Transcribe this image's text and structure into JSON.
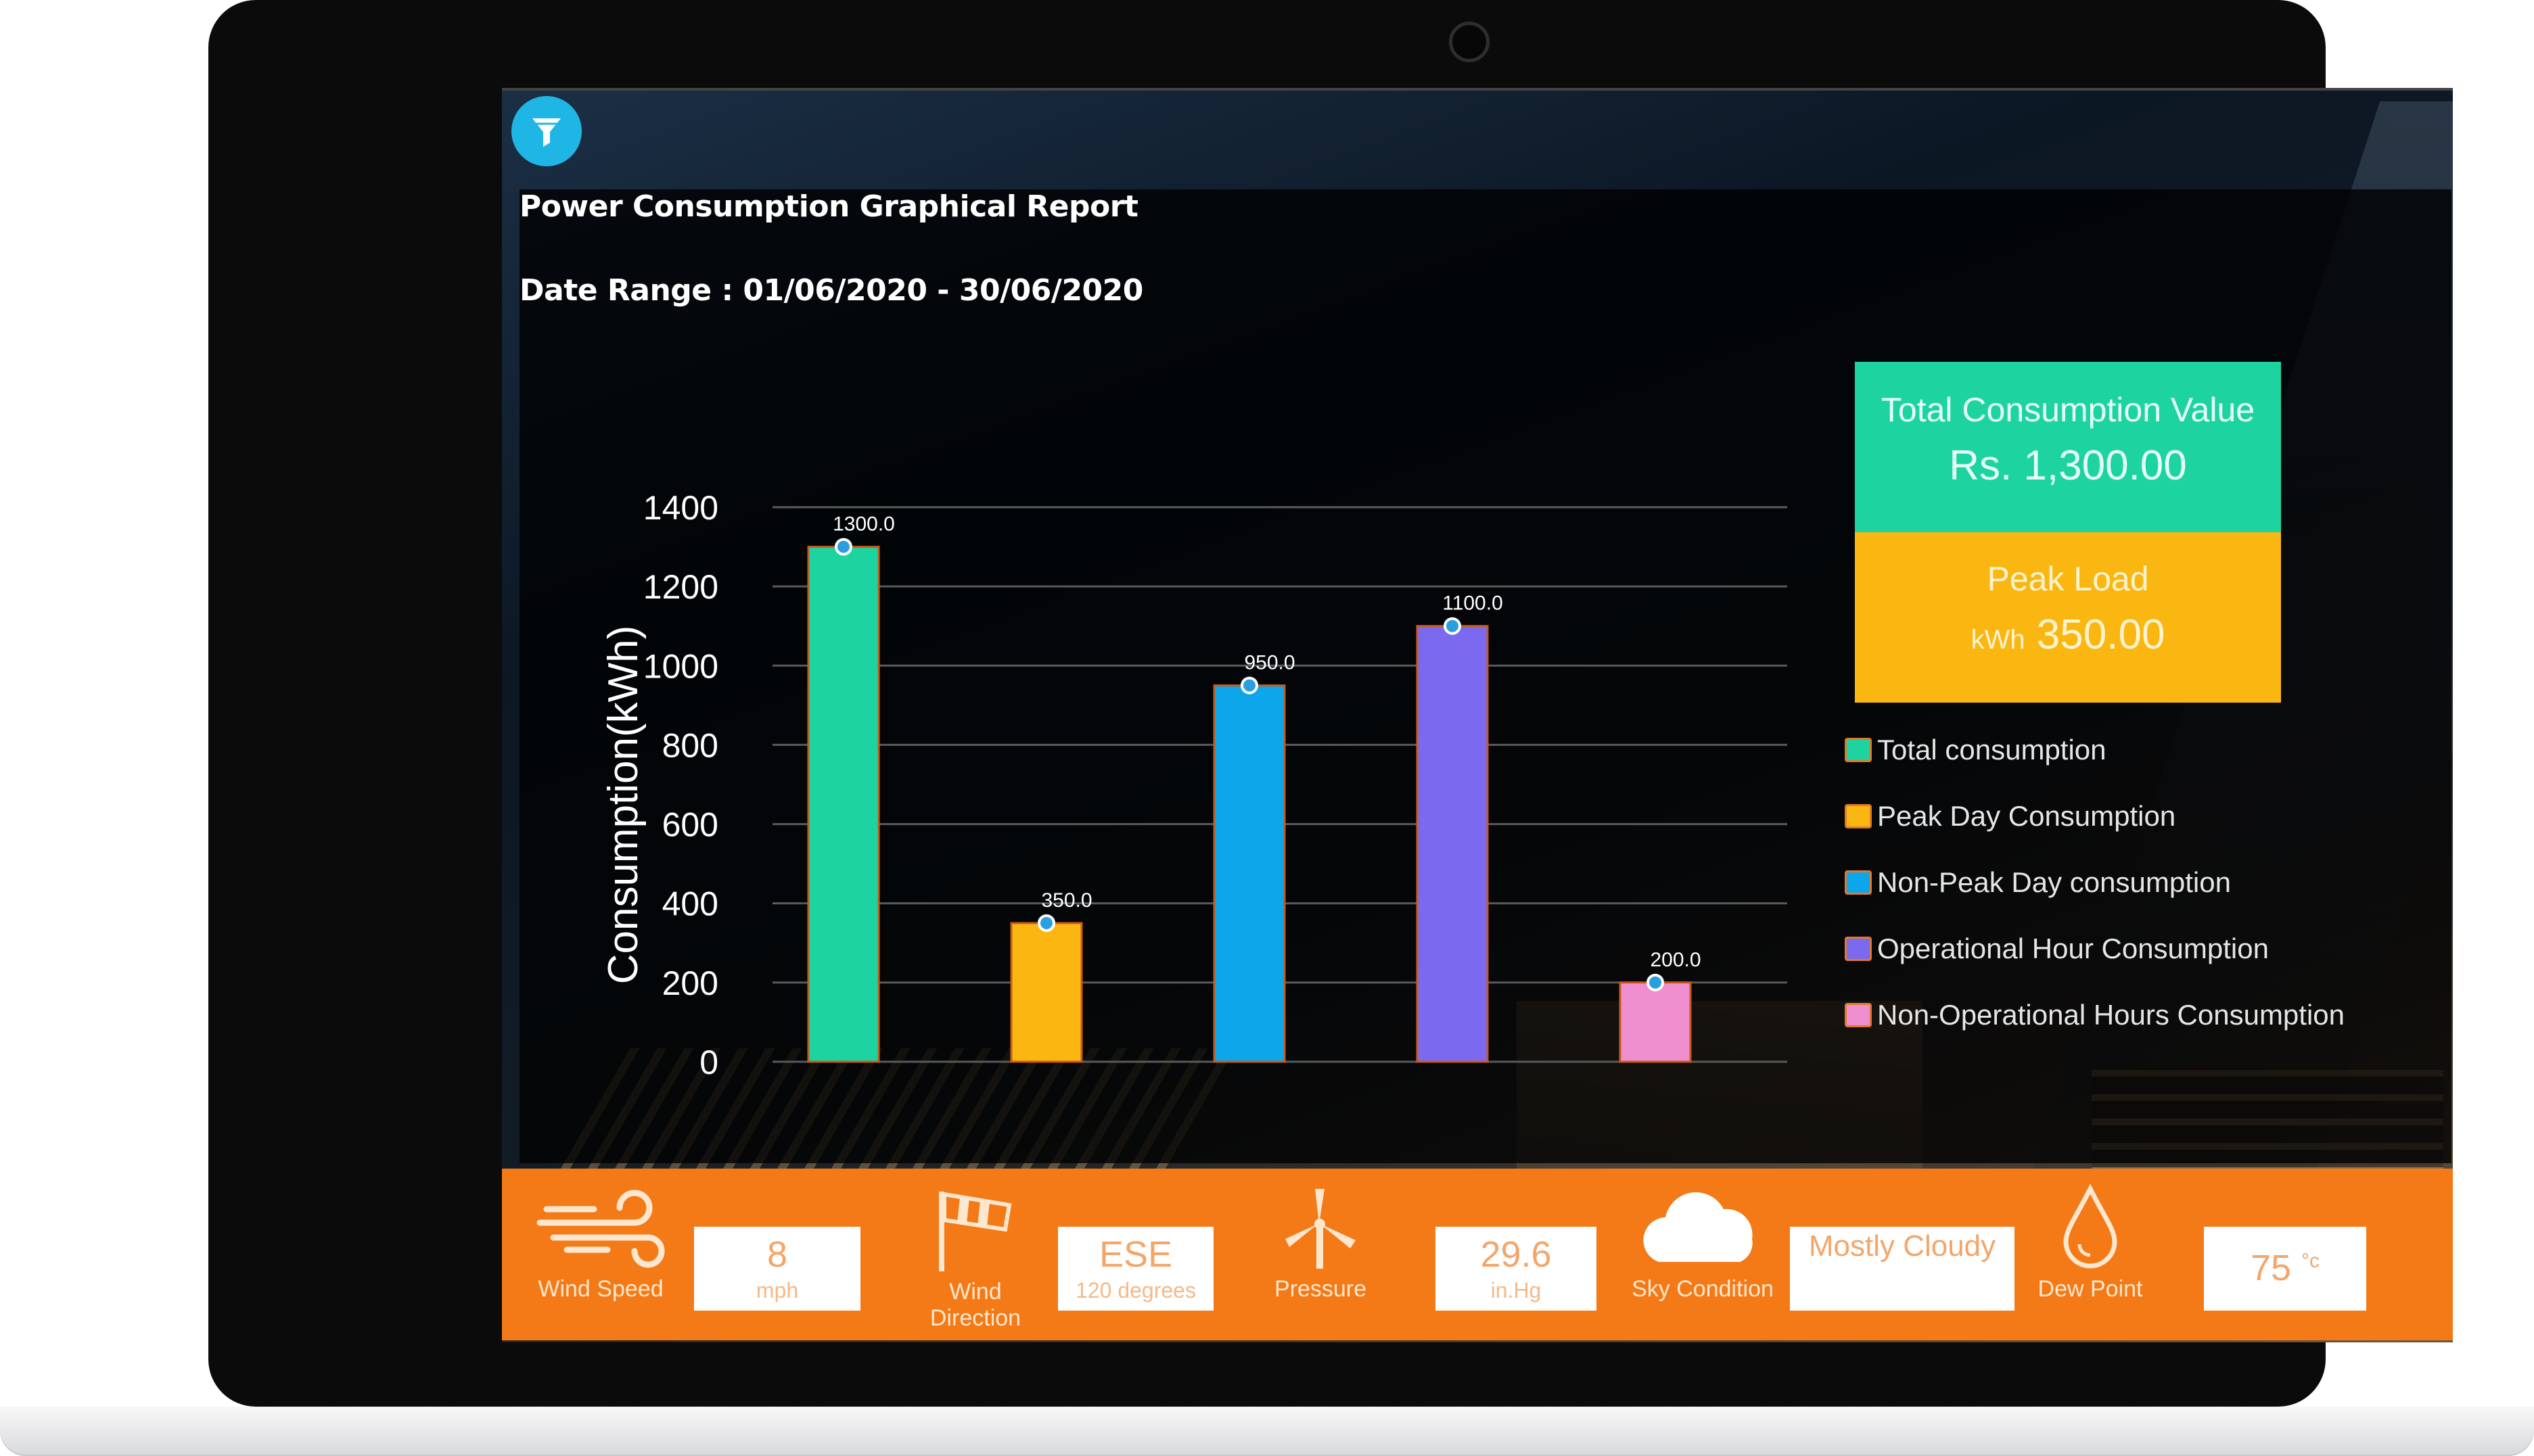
{
  "report": {
    "title": "Power Consumption Graphical Report",
    "date_range": "Date Range : 01/06/2020 - 30/06/2020"
  },
  "summary": {
    "total_label": "Total Consumption Value",
    "total_value": "Rs. 1,300.00",
    "peak_label": "Peak Load",
    "peak_unit": "kWh",
    "peak_value": "350.00"
  },
  "chart_data": {
    "type": "bar",
    "ylabel": "Consumption(kWh)",
    "ylim": [
      0,
      1400
    ],
    "yticks": [
      0,
      200,
      400,
      600,
      800,
      1000,
      1200,
      1400
    ],
    "grid": true,
    "legend_position": "right",
    "series": [
      {
        "name": "Total consumption",
        "value": 1300.0,
        "label": "1300.0",
        "color": "#1dd4a0"
      },
      {
        "name": "Peak Day Consumption",
        "value": 350.0,
        "label": "350.0",
        "color": "#fbb711"
      },
      {
        "name": "Non-Peak Day consumption",
        "value": 950.0,
        "label": "950.0",
        "color": "#0ea6ea"
      },
      {
        "name": "Operational Hour Consumption",
        "value": 1100.0,
        "label": "1100.0",
        "color": "#7b6af0"
      },
      {
        "name": "Non-Operational Hours Consumption",
        "value": 200.0,
        "label": "200.0",
        "color": "#ef8fd0"
      }
    ]
  },
  "weather": {
    "wind_speed_label": "Wind Speed",
    "wind_speed_value": "8",
    "wind_speed_unit": "mph",
    "wind_direction_label_1": "Wind",
    "wind_direction_label_2": "Direction",
    "wind_direction_value": "ESE",
    "wind_direction_unit": "120 degrees",
    "pressure_label": "Pressure",
    "pressure_value": "29.6",
    "pressure_unit": "in.Hg",
    "sky_label": "Sky Condition",
    "sky_value": "Mostly Cloudy",
    "dew_label": "Dew Point",
    "dew_value": "75",
    "dew_unit": "°c"
  }
}
